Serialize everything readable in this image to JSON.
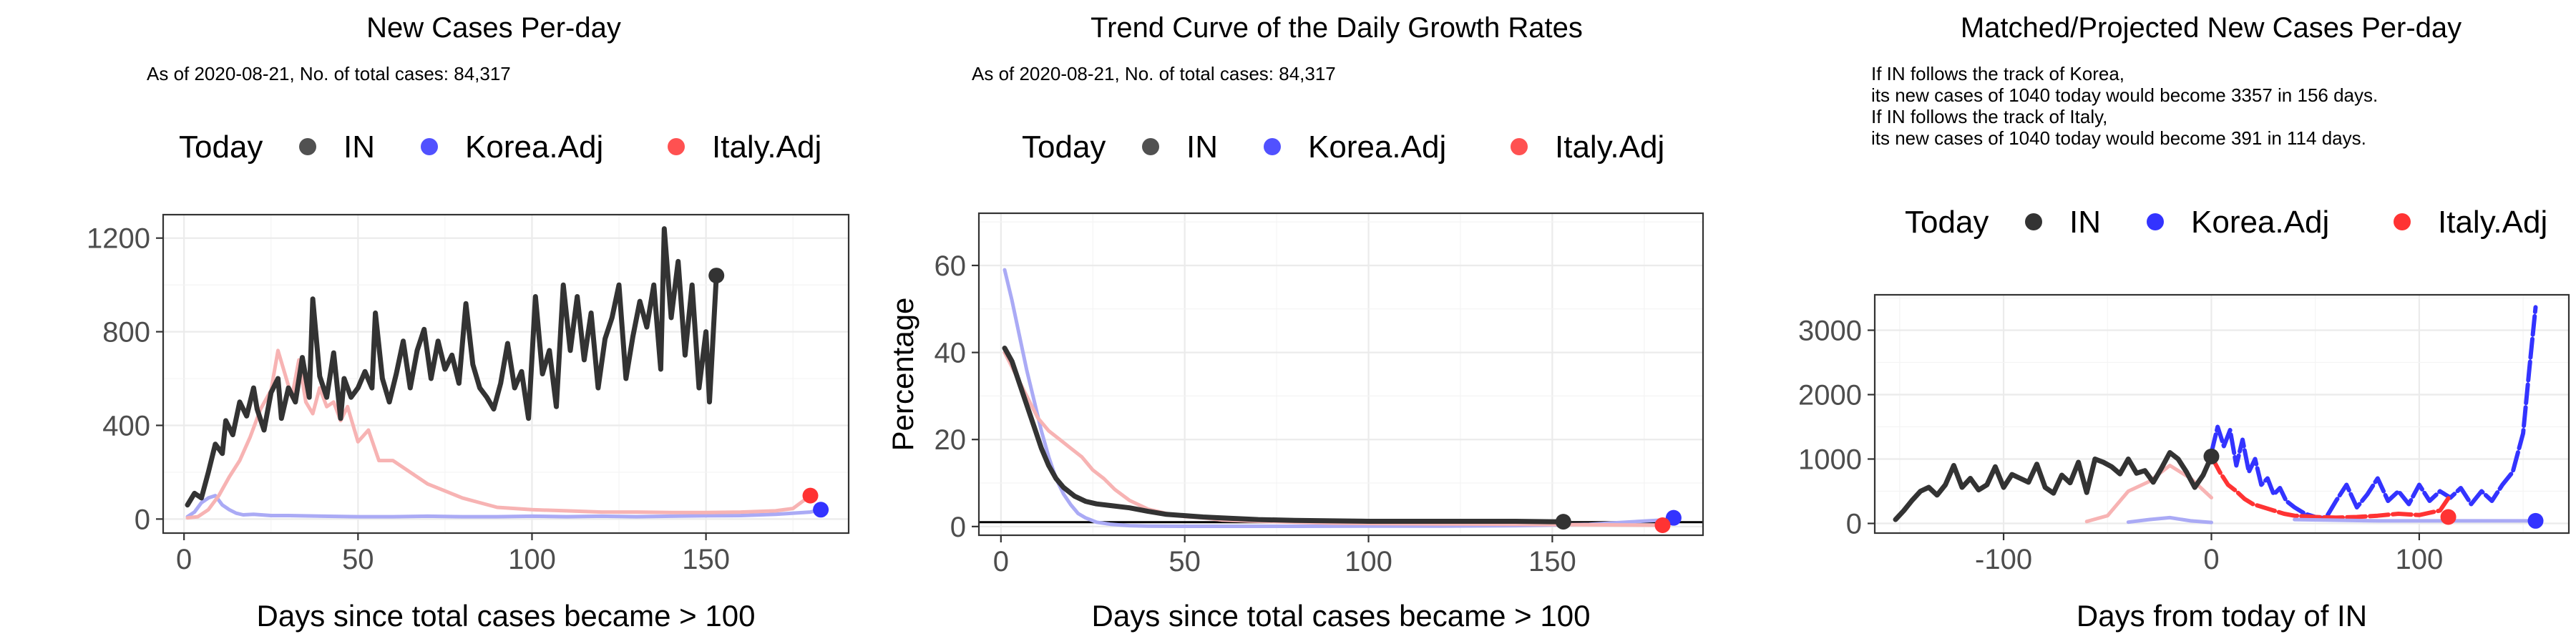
{
  "colors": {
    "IN": "#333333",
    "Korea.Adj": "#3333ff",
    "Italy.Adj": "#ff3333",
    "Korea.Adj.light": "#aaaaf5",
    "Italy.Adj.light": "#f7b3b3"
  },
  "chart_data": [
    {
      "type": "line",
      "title": "New Cases Per-day",
      "subtitle": [
        "As of 2020-08-21, No. of total cases: 84,317"
      ],
      "legend": {
        "placement": "top",
        "labels": [
          "Today",
          "IN",
          "Korea.Adj",
          "Italy.Adj"
        ]
      },
      "xlabel": "Days since total cases became > 100",
      "ylabel": "",
      "xlim": [
        -6,
        191
      ],
      "ylim": [
        -60,
        1300
      ],
      "xticks": [
        0,
        50,
        100,
        150
      ],
      "yticks": [
        0,
        400,
        800,
        1200
      ],
      "grid": true,
      "series": [
        {
          "name": "IN",
          "x": [
            1,
            3,
            5,
            7,
            9,
            11,
            12,
            14,
            16,
            18,
            20,
            21,
            23,
            25,
            27,
            28,
            30,
            32,
            34,
            36,
            37,
            39,
            41,
            43,
            45,
            46,
            48,
            50,
            52,
            54,
            55,
            57,
            59,
            61,
            63,
            65,
            67,
            69,
            71,
            73,
            75,
            77,
            79,
            81,
            83,
            85,
            87,
            89,
            91,
            93,
            95,
            97,
            99,
            101,
            103,
            105,
            107,
            109,
            111,
            113,
            115,
            117,
            119,
            121,
            123,
            125,
            127,
            129,
            131,
            133,
            135,
            137,
            138,
            140,
            142,
            144,
            146,
            148,
            150,
            151,
            153
          ],
          "values": [
            60,
            110,
            90,
            200,
            320,
            280,
            420,
            360,
            500,
            440,
            560,
            470,
            380,
            540,
            600,
            430,
            560,
            500,
            690,
            520,
            940,
            610,
            520,
            710,
            430,
            600,
            520,
            560,
            630,
            560,
            880,
            600,
            500,
            620,
            760,
            560,
            720,
            810,
            600,
            760,
            640,
            700,
            580,
            920,
            660,
            560,
            520,
            470,
            580,
            750,
            560,
            630,
            430,
            950,
            620,
            720,
            480,
            1000,
            720,
            950,
            680,
            880,
            560,
            770,
            860,
            1000,
            600,
            780,
            930,
            820,
            1000,
            640,
            1240,
            860,
            1100,
            700,
            1000,
            560,
            800,
            500,
            1040
          ]
        },
        {
          "name": "Korea.Adj",
          "x": [
            1,
            3,
            5,
            7,
            9,
            11,
            13,
            15,
            17,
            20,
            25,
            30,
            40,
            50,
            60,
            70,
            80,
            90,
            100,
            110,
            120,
            130,
            140,
            150,
            160,
            170,
            180,
            183
          ],
          "values": [
            10,
            30,
            70,
            90,
            100,
            60,
            40,
            25,
            18,
            20,
            15,
            15,
            12,
            10,
            10,
            12,
            10,
            10,
            12,
            10,
            12,
            10,
            12,
            14,
            15,
            20,
            30,
            40
          ]
        },
        {
          "name": "Italy.Adj",
          "x": [
            1,
            4,
            7,
            10,
            13,
            16,
            19,
            22,
            25,
            27,
            29,
            31,
            33,
            35,
            37,
            39,
            41,
            43,
            45,
            47,
            50,
            53,
            56,
            60,
            65,
            70,
            75,
            80,
            85,
            90,
            95,
            100,
            110,
            120,
            130,
            140,
            150,
            160,
            170,
            175,
            180
          ],
          "values": [
            5,
            10,
            40,
            100,
            180,
            250,
            350,
            470,
            550,
            720,
            620,
            520,
            680,
            500,
            450,
            560,
            480,
            500,
            420,
            480,
            330,
            380,
            250,
            250,
            200,
            150,
            120,
            90,
            70,
            50,
            45,
            40,
            35,
            30,
            30,
            28,
            28,
            30,
            35,
            45,
            100
          ]
        }
      ],
      "today_points": [
        {
          "name": "IN",
          "x": 153,
          "y": 1040
        },
        {
          "name": "Korea.Adj",
          "x": 183,
          "y": 40
        },
        {
          "name": "Italy.Adj",
          "x": 180,
          "y": 100
        }
      ]
    },
    {
      "type": "line",
      "title": "Trend Curve of the Daily Growth Rates",
      "subtitle": [
        "As of 2020-08-21, No. of total cases: 84,317"
      ],
      "legend": {
        "placement": "top",
        "labels": [
          "Today",
          "IN",
          "Korea.Adj",
          "Italy.Adj"
        ]
      },
      "xlabel": "Days since total cases became > 100",
      "ylabel": "Percentage",
      "xlim": [
        -6,
        191
      ],
      "ylim": [
        -2,
        72
      ],
      "xticks": [
        0,
        50,
        100,
        150
      ],
      "yticks": [
        0,
        20,
        40,
        60
      ],
      "hline": 1,
      "grid": true,
      "series": [
        {
          "name": "IN",
          "x": [
            1,
            3,
            5,
            7,
            9,
            11,
            13,
            15,
            17,
            20,
            23,
            26,
            30,
            35,
            40,
            45,
            50,
            55,
            60,
            70,
            80,
            90,
            100,
            110,
            120,
            130,
            140,
            150,
            153
          ],
          "values": [
            41,
            38,
            33,
            28,
            23,
            18,
            14,
            11,
            9,
            7,
            5.8,
            5.2,
            4.8,
            4.3,
            3.5,
            2.8,
            2.5,
            2.2,
            2,
            1.6,
            1.4,
            1.3,
            1.2,
            1.2,
            1.2,
            1.2,
            1.2,
            1.1,
            1.1
          ]
        },
        {
          "name": "Korea.Adj",
          "x": [
            1,
            3,
            5,
            7,
            9,
            11,
            13,
            15,
            17,
            19,
            21,
            23,
            26,
            30,
            35,
            40,
            50,
            60,
            80,
            100,
            120,
            140,
            160,
            180,
            183
          ],
          "values": [
            59,
            52,
            44,
            36,
            29,
            22,
            16,
            11,
            7.5,
            5,
            3,
            2,
            1,
            0.5,
            0.2,
            0.1,
            0.05,
            0.05,
            0.05,
            0.1,
            0.1,
            0.2,
            0.5,
            1.5,
            2
          ]
        },
        {
          "name": "Italy.Adj",
          "x": [
            1,
            4,
            7,
            10,
            13,
            16,
            19,
            22,
            25,
            28,
            31,
            35,
            40,
            45,
            50,
            55,
            60,
            70,
            80,
            90,
            100,
            120,
            140,
            160,
            180
          ],
          "values": [
            40,
            35,
            30,
            25,
            22,
            20,
            18,
            16,
            13,
            11,
            8.5,
            6,
            4,
            3,
            2.3,
            2,
            1.5,
            1.2,
            1,
            0.8,
            0.7,
            0.6,
            0.5,
            0.4,
            0.3
          ]
        }
      ],
      "today_points": [
        {
          "name": "IN",
          "x": 153,
          "y": 1.1
        },
        {
          "name": "Korea.Adj",
          "x": 183,
          "y": 2
        },
        {
          "name": "Italy.Adj",
          "x": 180,
          "y": 0.3
        }
      ]
    },
    {
      "type": "line",
      "title": "Matched/Projected New Cases Per-day",
      "subtitle": [
        "If IN follows the track of Korea,",
        "its new cases of 1040 today would become 3357 in 156 days.",
        "If IN follows the track of Italy,",
        "its new cases of 1040 today would become 391 in 114 days."
      ],
      "legend": {
        "placement": "top",
        "labels": [
          "Today",
          "IN",
          "Korea.Adj",
          "Italy.Adj"
        ]
      },
      "xlabel": "Days from today of IN",
      "ylabel": "",
      "xlim": [
        -162,
        172
      ],
      "ylim": [
        -150,
        3550
      ],
      "xticks": [
        -100,
        0,
        100
      ],
      "yticks": [
        0,
        1000,
        2000,
        3000
      ],
      "grid": true,
      "series": [
        {
          "name": "IN",
          "x": [
            -152,
            -148,
            -144,
            -140,
            -136,
            -132,
            -128,
            -124,
            -120,
            -116,
            -112,
            -108,
            -104,
            -100,
            -96,
            -92,
            -88,
            -84,
            -80,
            -76,
            -72,
            -68,
            -64,
            -60,
            -56,
            -52,
            -48,
            -44,
            -40,
            -36,
            -32,
            -28,
            -24,
            -20,
            -16,
            -12,
            -8,
            -4,
            0
          ],
          "values": [
            60,
            200,
            360,
            500,
            560,
            440,
            600,
            900,
            560,
            700,
            520,
            600,
            880,
            560,
            760,
            700,
            640,
            920,
            560,
            470,
            750,
            630,
            950,
            480,
            1000,
            950,
            880,
            770,
            1000,
            780,
            820,
            640,
            860,
            1100,
            1000,
            800,
            560,
            750,
            1040
          ]
        },
        {
          "name": "Korea.Adj.matched",
          "light": true,
          "x": [
            -40,
            -30,
            -20,
            -10,
            0
          ],
          "values": [
            20,
            60,
            90,
            40,
            15
          ]
        },
        {
          "name": "Korea.Adj.projected",
          "x": [
            0,
            3,
            6,
            9,
            12,
            15,
            18,
            21,
            24,
            27,
            30,
            33,
            36,
            40,
            45,
            50,
            55,
            60,
            65,
            70,
            75,
            80,
            85,
            90,
            95,
            100,
            105,
            110,
            115,
            120,
            125,
            130,
            135,
            140,
            145,
            150,
            153,
            156
          ],
          "values": [
            1100,
            1500,
            1200,
            1450,
            900,
            1300,
            800,
            1000,
            600,
            700,
            450,
            550,
            350,
            250,
            150,
            100,
            80,
            350,
            600,
            250,
            450,
            700,
            350,
            500,
            300,
            600,
            350,
            500,
            400,
            550,
            300,
            500,
            350,
            600,
            800,
            1400,
            2400,
            3357
          ]
        },
        {
          "name": "Italy.Adj.matched",
          "light": true,
          "x": [
            -60,
            -50,
            -40,
            -30,
            -20,
            -10,
            0
          ],
          "values": [
            30,
            120,
            500,
            650,
            900,
            700,
            400
          ]
        },
        {
          "name": "Italy.Adj.projected",
          "x": [
            0,
            4,
            8,
            12,
            16,
            20,
            25,
            30,
            35,
            40,
            50,
            60,
            70,
            80,
            90,
            100,
            110,
            114
          ],
          "values": [
            1040,
            800,
            600,
            500,
            380,
            300,
            250,
            200,
            150,
            120,
            100,
            90,
            100,
            120,
            150,
            130,
            200,
            391
          ]
        },
        {
          "name": "Korea.Adj.tail",
          "light": true,
          "x": [
            40,
            60,
            80,
            100,
            120,
            140,
            156
          ],
          "values": [
            60,
            50,
            40,
            40,
            40,
            40,
            40
          ]
        }
      ],
      "today_points": [
        {
          "name": "IN",
          "x": 0,
          "y": 1040
        },
        {
          "name": "Korea.Adj",
          "x": 156,
          "y": 40
        },
        {
          "name": "Italy.Adj",
          "x": 114,
          "y": 100
        }
      ]
    }
  ]
}
